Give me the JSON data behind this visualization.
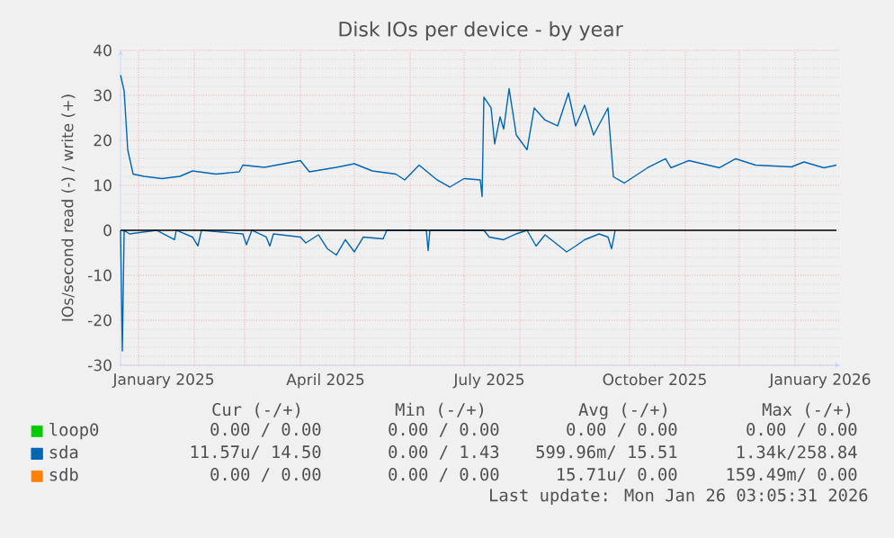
{
  "chart_data": {
    "type": "line",
    "title": "Disk IOs per device - by year",
    "ylabel": "IOs/second read (-) / write (+)",
    "xlim": [
      "2024-12-22",
      "2026-01-26"
    ],
    "ylim": [
      -30,
      40
    ],
    "xticks": [
      {
        "value": "2025-01-01",
        "label": null
      },
      {
        "value": "2025-02-01",
        "label": null
      },
      {
        "value": "2025-03-01",
        "label": null
      },
      {
        "value": "2025-04-01",
        "label": null
      },
      {
        "value": "2025-05-01",
        "label": null
      },
      {
        "value": "2025-06-01",
        "label": null
      },
      {
        "value": "2025-07-01",
        "label": null
      },
      {
        "value": "2025-08-01",
        "label": null
      },
      {
        "value": "2025-09-01",
        "label": null
      },
      {
        "value": "2025-10-01",
        "label": null
      },
      {
        "value": "2025-11-01",
        "label": null
      },
      {
        "value": "2025-12-01",
        "label": null
      },
      {
        "value": "2026-01-01",
        "label": null
      },
      {
        "value": "2025-01-15",
        "label": "January 2025"
      },
      {
        "value": "2025-04-15",
        "label": "April 2025"
      },
      {
        "value": "2025-07-15",
        "label": "July 2025"
      },
      {
        "value": "2025-10-15",
        "label": "October 2025"
      },
      {
        "value": "2026-01-15",
        "label": "January 2026"
      }
    ],
    "yticks": [
      -30,
      -20,
      -10,
      0,
      10,
      20,
      30,
      40
    ],
    "grid": true,
    "legend": "bottom",
    "marker": "none",
    "line_style": "solid",
    "ref_lines": [
      {
        "axis": "y",
        "value": 0,
        "color": "#000000"
      }
    ],
    "series": [
      {
        "name": "loop0",
        "color": "#00cc00"
      },
      {
        "name": "sda",
        "color": "#0066b3",
        "x": [
          "2024-12-22",
          "2024-12-24",
          "2024-12-26",
          "2024-12-29",
          "2025-01-04",
          "2025-01-14",
          "2025-01-24",
          "2025-01-31",
          "2025-02-13",
          "2025-02-26",
          "2025-02-28",
          "2025-03-12",
          "2025-04-01",
          "2025-04-06",
          "2025-04-21",
          "2025-05-01",
          "2025-05-11",
          "2025-05-24",
          "2025-05-29",
          "2025-06-06",
          "2025-06-16",
          "2025-06-23",
          "2025-07-01",
          "2025-07-10",
          "2025-07-11",
          "2025-07-12",
          "2025-07-16",
          "2025-07-18",
          "2025-07-21",
          "2025-07-23",
          "2025-07-26",
          "2025-07-30",
          "2025-08-05",
          "2025-08-09",
          "2025-08-15",
          "2025-08-22",
          "2025-08-28",
          "2025-09-01",
          "2025-09-06",
          "2025-09-11",
          "2025-09-19",
          "2025-09-22",
          "2025-09-28",
          "2025-10-11",
          "2025-10-21",
          "2025-10-24",
          "2025-11-03",
          "2025-11-20",
          "2025-11-29",
          "2025-12-10",
          "2025-12-30",
          "2026-01-06",
          "2026-01-17",
          "2026-01-24"
        ],
        "values": [
          34.5,
          31,
          17.9,
          12.5,
          12,
          11.5,
          12,
          13.2,
          12.5,
          13,
          14.5,
          14,
          15.5,
          13,
          14,
          14.8,
          13.2,
          12.5,
          11.2,
          14.5,
          11.2,
          9.6,
          11.5,
          11.2,
          7.5,
          29.6,
          27.2,
          19.2,
          25.2,
          22.5,
          31.5,
          21.2,
          17.9,
          27.2,
          24.5,
          23.2,
          30.5,
          23.2,
          27.8,
          21.2,
          27.2,
          11.9,
          10.5,
          13.9,
          15.9,
          13.9,
          15.5,
          13.9,
          15.9,
          14.5,
          14.1,
          15.2,
          13.9,
          14.5
        ]
      },
      {
        "color": "#0066b3",
        "x": [
          "2024-12-22",
          "2024-12-23",
          "2024-12-24",
          "2024-12-27",
          "2025-01-11",
          "2025-01-21",
          "2025-01-22",
          "2025-01-31",
          "2025-02-03",
          "2025-02-05",
          "2025-02-28",
          "2025-03-02",
          "2025-03-05",
          "2025-03-13",
          "2025-03-15",
          "2025-03-17",
          "2025-04-01",
          "2025-04-04",
          "2025-04-11",
          "2025-04-16",
          "2025-04-21",
          "2025-04-26",
          "2025-05-01",
          "2025-05-06",
          "2025-05-17",
          "2025-05-19",
          "2025-06-10",
          "2025-06-11",
          "2025-06-12",
          "2025-07-12",
          "2025-07-15",
          "2025-07-23",
          "2025-07-30",
          "2025-08-05",
          "2025-08-10",
          "2025-08-15",
          "2025-08-27",
          "2025-09-01",
          "2025-09-06",
          "2025-09-14",
          "2025-09-19",
          "2025-09-21",
          "2025-09-23"
        ],
        "values": [
          0,
          -26.8,
          0,
          -0.8,
          0,
          -2.1,
          0,
          -1.5,
          -3.5,
          0,
          -0.8,
          -3.2,
          0,
          -1.5,
          -3.5,
          -0.8,
          -1.5,
          -2.8,
          -1,
          -4.1,
          -5.5,
          -2.1,
          -4.8,
          -1.5,
          -1.9,
          0,
          0,
          -4.5,
          0,
          0,
          -1.5,
          -2.1,
          -0.8,
          0,
          -3.5,
          -1,
          -4.8,
          -3.5,
          -2.1,
          -0.8,
          -1.5,
          -4.1,
          0
        ]
      },
      {
        "name": "sdb",
        "color": "#ff8000"
      }
    ],
    "annotations": [
      "Cur (-/+)",
      "Min (-/+)",
      "Avg (-/+)",
      "Max (-/+)",
      "0.00 /  0.00",
      "0.00 /  0.00",
      "0.00 /  0.00",
      "0.00 /  0.00",
      "11.57u/ 14.50",
      "0.00 /  1.43",
      "599.96m/ 15.51",
      "1.34k/258.84",
      "0.00 /  0.00",
      "0.00 /  0.00",
      "15.71u/  0.00",
      "159.49m/  0.00",
      "Last update: Mon Jan 26 03:05:31 2026"
    ]
  }
}
